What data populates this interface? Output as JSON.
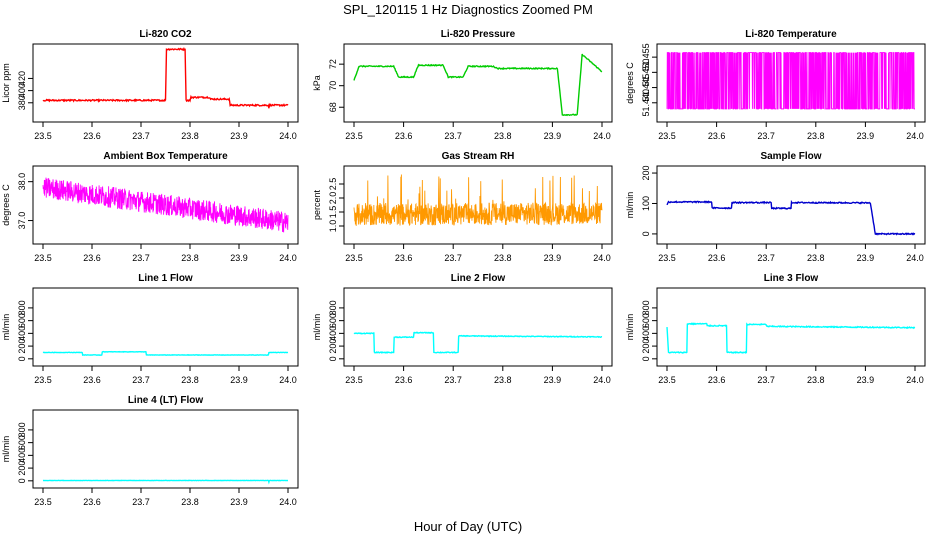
{
  "figure": {
    "title": "SPL_120115  1 Hz Diagnostics Zoomed PM",
    "xlabel": "Hour of Day (UTC)"
  },
  "chart_data": [
    {
      "id": "co2",
      "type": "line",
      "title": "Li-820 CO2",
      "ylabel": "Licor ppm",
      "xlim": [
        23.5,
        24.0
      ],
      "xticks": [
        "23.5",
        "23.6",
        "23.7",
        "23.8",
        "23.9",
        "24.0"
      ],
      "ylim": [
        355,
        470
      ],
      "yticks": [
        380,
        400,
        420
      ],
      "color": "#ff0000",
      "noise": 1.2,
      "series": [
        [
          23.5,
          384
        ],
        [
          23.75,
          384
        ],
        [
          23.752,
          468
        ],
        [
          23.79,
          468
        ],
        [
          23.792,
          384
        ],
        [
          23.8,
          384
        ],
        [
          23.802,
          389
        ],
        [
          23.84,
          389
        ],
        [
          23.842,
          386
        ],
        [
          23.88,
          386
        ],
        [
          23.882,
          376
        ],
        [
          23.96,
          376
        ],
        [
          23.961,
          372
        ],
        [
          23.962,
          376
        ],
        [
          24.0,
          376
        ]
      ]
    },
    {
      "id": "pressure",
      "type": "line",
      "title": "Li-820 Pressure",
      "ylabel": "kPa",
      "xlim": [
        23.5,
        24.0
      ],
      "xticks": [
        "23.5",
        "23.6",
        "23.7",
        "23.8",
        "23.9",
        "24.0"
      ],
      "ylim": [
        67.0,
        73.5
      ],
      "yticks": [
        68,
        70,
        72
      ],
      "color": "#00cc00",
      "noise": 0.05,
      "series": [
        [
          23.5,
          70.5
        ],
        [
          23.51,
          71.8
        ],
        [
          23.58,
          71.8
        ],
        [
          23.59,
          70.8
        ],
        [
          23.62,
          70.8
        ],
        [
          23.63,
          71.9
        ],
        [
          23.68,
          71.9
        ],
        [
          23.69,
          70.8
        ],
        [
          23.72,
          70.8
        ],
        [
          23.73,
          71.8
        ],
        [
          23.78,
          71.8
        ],
        [
          23.79,
          71.6
        ],
        [
          23.91,
          71.6
        ],
        [
          23.92,
          67.3
        ],
        [
          23.95,
          67.3
        ],
        [
          23.96,
          72.9
        ],
        [
          24.0,
          71.3
        ]
      ]
    },
    {
      "id": "temp",
      "type": "noise",
      "title": "Li-820 Temperature",
      "ylabel": "degrees C",
      "xlim": [
        23.5,
        24.0
      ],
      "xticks": [
        "23.5",
        "23.6",
        "23.7",
        "23.8",
        "23.9",
        "24.0"
      ],
      "ylim": [
        51.435,
        51.458
      ],
      "yticks": [
        "51.440",
        "51.445",
        "51.450",
        "51.455"
      ],
      "color": "#ff00ff",
      "levels": [
        51.438,
        51.4565
      ]
    },
    {
      "id": "ambient",
      "type": "noise",
      "title": "Ambient Box Temperature",
      "ylabel": "degrees C",
      "xlim": [
        23.5,
        24.0
      ],
      "xticks": [
        "23.5",
        "23.6",
        "23.7",
        "23.8",
        "23.9",
        "24.0"
      ],
      "ylim": [
        36.5,
        38.3
      ],
      "yticks": [
        "37.0",
        "38.0"
      ],
      "color": "#ff00ff",
      "trend": [
        [
          23.5,
          37.85
        ],
        [
          24.0,
          36.95
        ]
      ],
      "spread": 0.55
    },
    {
      "id": "rh",
      "type": "noise",
      "title": "Gas Stream RH",
      "ylabel": "percent",
      "xlim": [
        23.5,
        24.0
      ],
      "xticks": [
        "23.5",
        "23.6",
        "23.7",
        "23.8",
        "23.9",
        "24.0"
      ],
      "ylim": [
        0.5,
        3.0
      ],
      "yticks": [
        "1.0",
        "1.5",
        "2.0",
        "2.5"
      ],
      "color": "#ff9900",
      "trend": [
        [
          23.5,
          1.4
        ],
        [
          24.0,
          1.45
        ]
      ],
      "spread": 0.8,
      "spikes": 0.5
    },
    {
      "id": "sample",
      "type": "line",
      "title": "Sample Flow",
      "ylabel": "ml/min",
      "xlim": [
        23.5,
        24.0
      ],
      "xticks": [
        "23.5",
        "23.6",
        "23.7",
        "23.8",
        "23.9",
        "24.0"
      ],
      "ylim": [
        -20,
        210
      ],
      "yticks": [
        0,
        100,
        200
      ],
      "color": "#0000cc",
      "noise": 2,
      "series": [
        [
          23.5,
          95
        ],
        [
          23.503,
          105
        ],
        [
          23.59,
          105
        ],
        [
          23.591,
          85
        ],
        [
          23.63,
          85
        ],
        [
          23.631,
          103
        ],
        [
          23.71,
          103
        ],
        [
          23.711,
          84
        ],
        [
          23.75,
          84
        ],
        [
          23.751,
          103
        ],
        [
          23.91,
          102
        ],
        [
          23.92,
          0
        ],
        [
          24.0,
          0
        ]
      ]
    },
    {
      "id": "line1",
      "type": "line",
      "title": "Line 1 Flow",
      "ylabel": "ml/min",
      "xlim": [
        23.5,
        24.0
      ],
      "xticks": [
        "23.5",
        "23.6",
        "23.7",
        "23.8",
        "23.9",
        "24.0"
      ],
      "ylim": [
        -50,
        1050
      ],
      "yticks": [
        0,
        200,
        400,
        600,
        800
      ],
      "color": "#00ffff",
      "noise": 3,
      "series": [
        [
          23.5,
          100
        ],
        [
          23.58,
          100
        ],
        [
          23.581,
          60
        ],
        [
          23.62,
          60
        ],
        [
          23.621,
          110
        ],
        [
          23.71,
          110
        ],
        [
          23.711,
          60
        ],
        [
          23.96,
          60
        ],
        [
          23.961,
          100
        ],
        [
          24.0,
          100
        ]
      ]
    },
    {
      "id": "line2",
      "type": "line",
      "title": "Line 2 Flow",
      "ylabel": "ml/min",
      "xlim": [
        23.5,
        24.0
      ],
      "xticks": [
        "23.5",
        "23.6",
        "23.7",
        "23.8",
        "23.9",
        "24.0"
      ],
      "ylim": [
        -50,
        1050
      ],
      "yticks": [
        0,
        200,
        400,
        600,
        800
      ],
      "color": "#00ffff",
      "noise": 6,
      "series": [
        [
          23.5,
          400
        ],
        [
          23.54,
          400
        ],
        [
          23.541,
          100
        ],
        [
          23.58,
          100
        ],
        [
          23.581,
          340
        ],
        [
          23.62,
          340
        ],
        [
          23.621,
          410
        ],
        [
          23.66,
          410
        ],
        [
          23.661,
          100
        ],
        [
          23.71,
          100
        ],
        [
          23.711,
          360
        ],
        [
          24.0,
          345
        ]
      ]
    },
    {
      "id": "line3",
      "type": "line",
      "title": "Line 3 Flow",
      "ylabel": "ml/min",
      "xlim": [
        23.5,
        24.0
      ],
      "xticks": [
        "23.5",
        "23.6",
        "23.7",
        "23.8",
        "23.9",
        "24.0"
      ],
      "ylim": [
        -50,
        1050
      ],
      "yticks": [
        0,
        200,
        400,
        600,
        800
      ],
      "color": "#00ffff",
      "noise": 8,
      "series": [
        [
          23.5,
          500
        ],
        [
          23.503,
          100
        ],
        [
          23.54,
          100
        ],
        [
          23.541,
          550
        ],
        [
          23.58,
          550
        ],
        [
          23.581,
          520
        ],
        [
          23.62,
          520
        ],
        [
          23.621,
          100
        ],
        [
          23.66,
          100
        ],
        [
          23.661,
          540
        ],
        [
          23.7,
          540
        ],
        [
          23.701,
          510
        ],
        [
          24.0,
          490
        ]
      ]
    },
    {
      "id": "line4",
      "type": "line",
      "title": "Line 4 (LT) Flow",
      "ylabel": "ml/min",
      "xlim": [
        23.5,
        24.0
      ],
      "xticks": [
        "23.5",
        "23.6",
        "23.7",
        "23.8",
        "23.9",
        "24.0"
      ],
      "ylim": [
        -50,
        1050
      ],
      "yticks": [
        0,
        200,
        400,
        600,
        800
      ],
      "color": "#00ffff",
      "noise": 2,
      "series": [
        [
          23.5,
          5
        ],
        [
          23.96,
          5
        ],
        [
          23.961,
          -20
        ],
        [
          23.962,
          5
        ],
        [
          24.0,
          5
        ]
      ]
    }
  ]
}
